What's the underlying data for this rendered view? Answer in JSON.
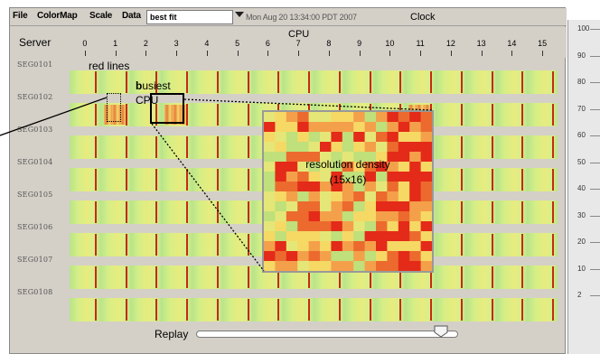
{
  "menu": {
    "file": "File",
    "colormap": "ColorMap",
    "scale": "Scale",
    "data": "Data",
    "combo_value": "best fit",
    "timestamp": "Mon Aug 20 13:34:00 PDT 2007",
    "clock": "Clock"
  },
  "grid": {
    "server_header": "Server",
    "cpu_header": "CPU",
    "cpu_ticks": [
      "0",
      "1",
      "2",
      "3",
      "4",
      "5",
      "6",
      "7",
      "8",
      "9",
      "10",
      "11",
      "12",
      "13",
      "14",
      "15"
    ],
    "servers": [
      "SEG0101",
      "SEG0102",
      "SEG0103",
      "SEG0104",
      "SEG0105",
      "SEG0106",
      "SEG0107",
      "SEG0108"
    ]
  },
  "replay": {
    "label": "Replay",
    "position_fraction": 0.93
  },
  "scale": {
    "labels": [
      "100",
      "90",
      "80",
      "70",
      "60",
      "50",
      "40",
      "30",
      "20",
      "10",
      "2"
    ]
  },
  "annotations": {
    "red_lines": "red lines",
    "busiest_b": "b",
    "busiest_rest": "usiest",
    "busiest_cpu": "CPU",
    "zoom_line1": "resolution density",
    "zoom_line2": "(15x16)"
  },
  "colors": {
    "heat_low": "#b7e48a",
    "heat_mid": "#f4d060",
    "heat_high": "#e8201a",
    "red_line": "#c82a12"
  }
}
